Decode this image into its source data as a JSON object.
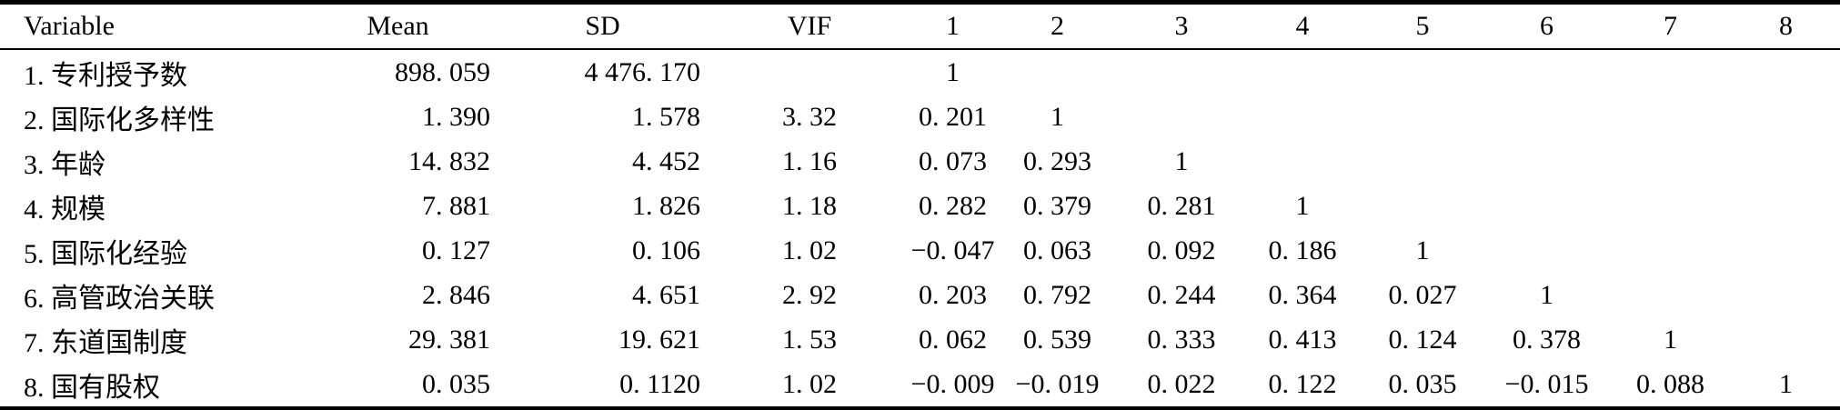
{
  "table": {
    "columns": [
      "Variable",
      "Mean",
      "SD",
      "VIF",
      "1",
      "2",
      "3",
      "4",
      "5",
      "6",
      "7",
      "8"
    ],
    "rows": [
      {
        "cells": [
          "1. 专利授予数",
          "898. 059",
          "4 476. 170",
          "",
          "1",
          "",
          "",
          "",
          "",
          "",
          "",
          ""
        ]
      },
      {
        "cells": [
          "2. 国际化多样性",
          "1. 390",
          "1. 578",
          "3. 32",
          "0. 201",
          "1",
          "",
          "",
          "",
          "",
          "",
          ""
        ]
      },
      {
        "cells": [
          "3. 年龄",
          "14. 832",
          "4. 452",
          "1. 16",
          "0. 073",
          "0. 293",
          "1",
          "",
          "",
          "",
          "",
          ""
        ]
      },
      {
        "cells": [
          "4. 规模",
          "7. 881",
          "1. 826",
          "1. 18",
          "0. 282",
          "0. 379",
          "0. 281",
          "1",
          "",
          "",
          "",
          ""
        ]
      },
      {
        "cells": [
          "5. 国际化经验",
          "0. 127",
          "0. 106",
          "1. 02",
          "−0. 047",
          "0. 063",
          "0. 092",
          "0. 186",
          "1",
          "",
          "",
          ""
        ]
      },
      {
        "cells": [
          "6. 高管政治关联",
          "2. 846",
          "4. 651",
          "2. 92",
          "0. 203",
          "0. 792",
          "0. 244",
          "0. 364",
          "0. 027",
          "1",
          "",
          ""
        ]
      },
      {
        "cells": [
          "7. 东道国制度",
          "29. 381",
          "19. 621",
          "1. 53",
          "0. 062",
          "0. 539",
          "0. 333",
          "0. 413",
          "0. 124",
          "0. 378",
          "1",
          ""
        ]
      },
      {
        "cells": [
          "8. 国有股权",
          "0. 035",
          "0. 1120",
          "1. 02",
          "−0. 009",
          "−0. 019",
          "0. 022",
          "0. 122",
          "0. 035",
          "−0. 015",
          "0. 088",
          "1"
        ]
      }
    ]
  }
}
